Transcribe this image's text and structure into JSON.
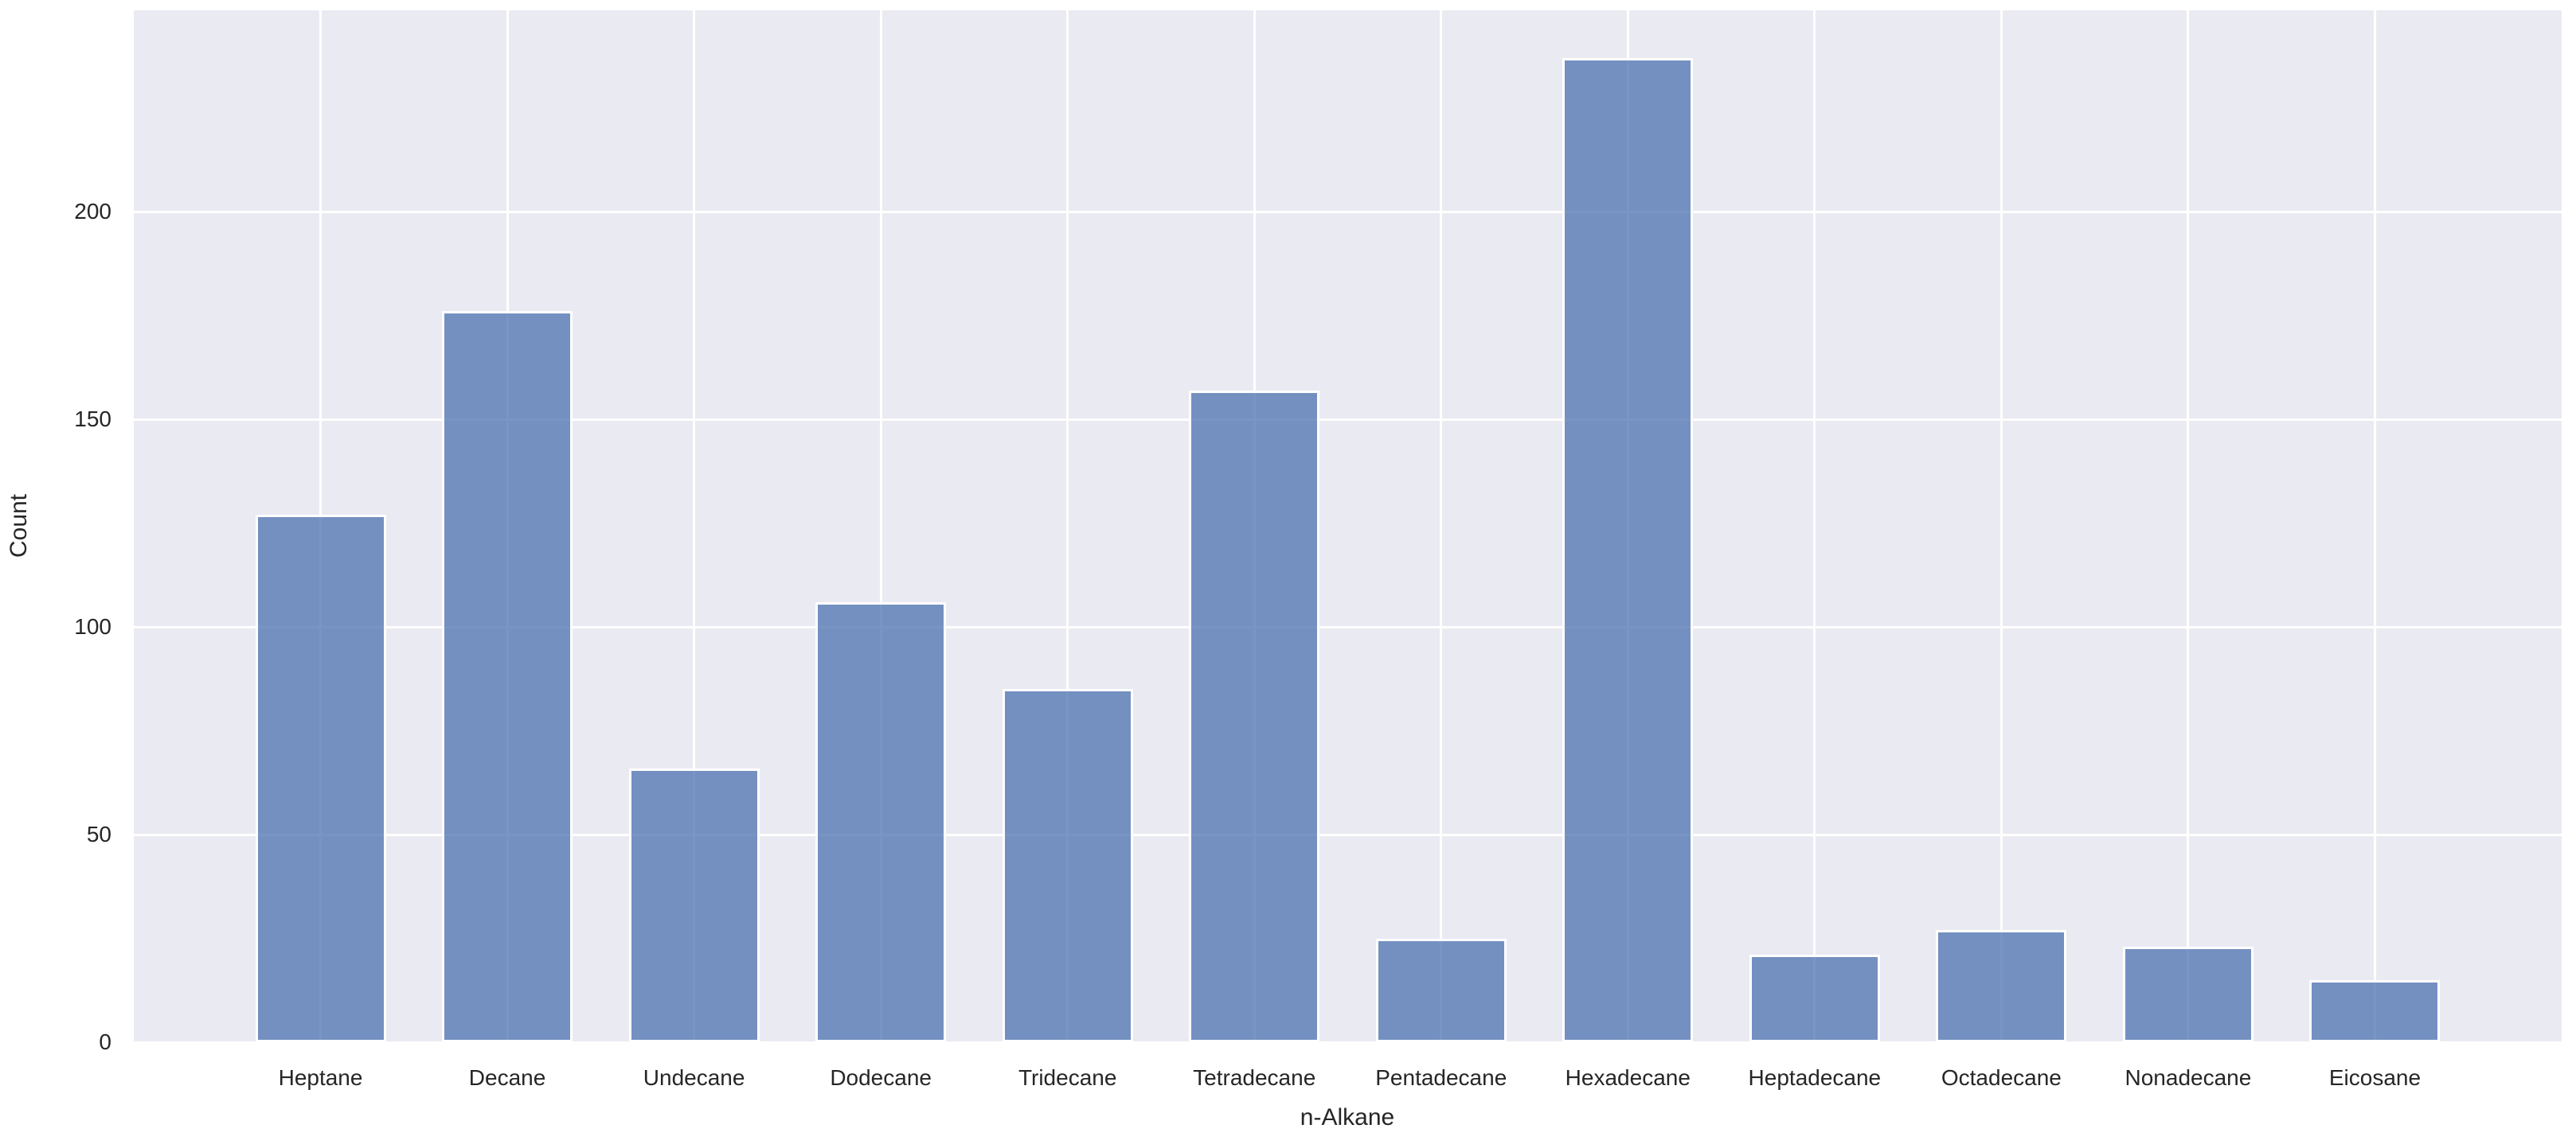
{
  "figure": {
    "background": "#ffffff",
    "plot_background": "#eaeaf2",
    "grid_color": "#ffffff",
    "text_color": "#262626"
  },
  "chart_data": {
    "type": "bar",
    "title": "",
    "xlabel": "n-Alkane",
    "ylabel": "Count",
    "categories": [
      "Heptane",
      "Decane",
      "Undecane",
      "Dodecane",
      "Tridecane",
      "Tetradecane",
      "Pentadecane",
      "Hexadecane",
      "Heptadecane",
      "Octadecane",
      "Nonadecane",
      "Eicosane"
    ],
    "values": [
      127,
      176,
      66,
      106,
      85,
      157,
      25,
      237,
      21,
      27,
      23,
      15
    ],
    "yticks": [
      0,
      50,
      100,
      150,
      200
    ],
    "ylim": [
      0,
      248.5
    ],
    "grid": true,
    "legend": false,
    "bar_color": "#4c72b0",
    "bar_alpha": 0.75,
    "bar_edge_color": "#ffffff"
  }
}
